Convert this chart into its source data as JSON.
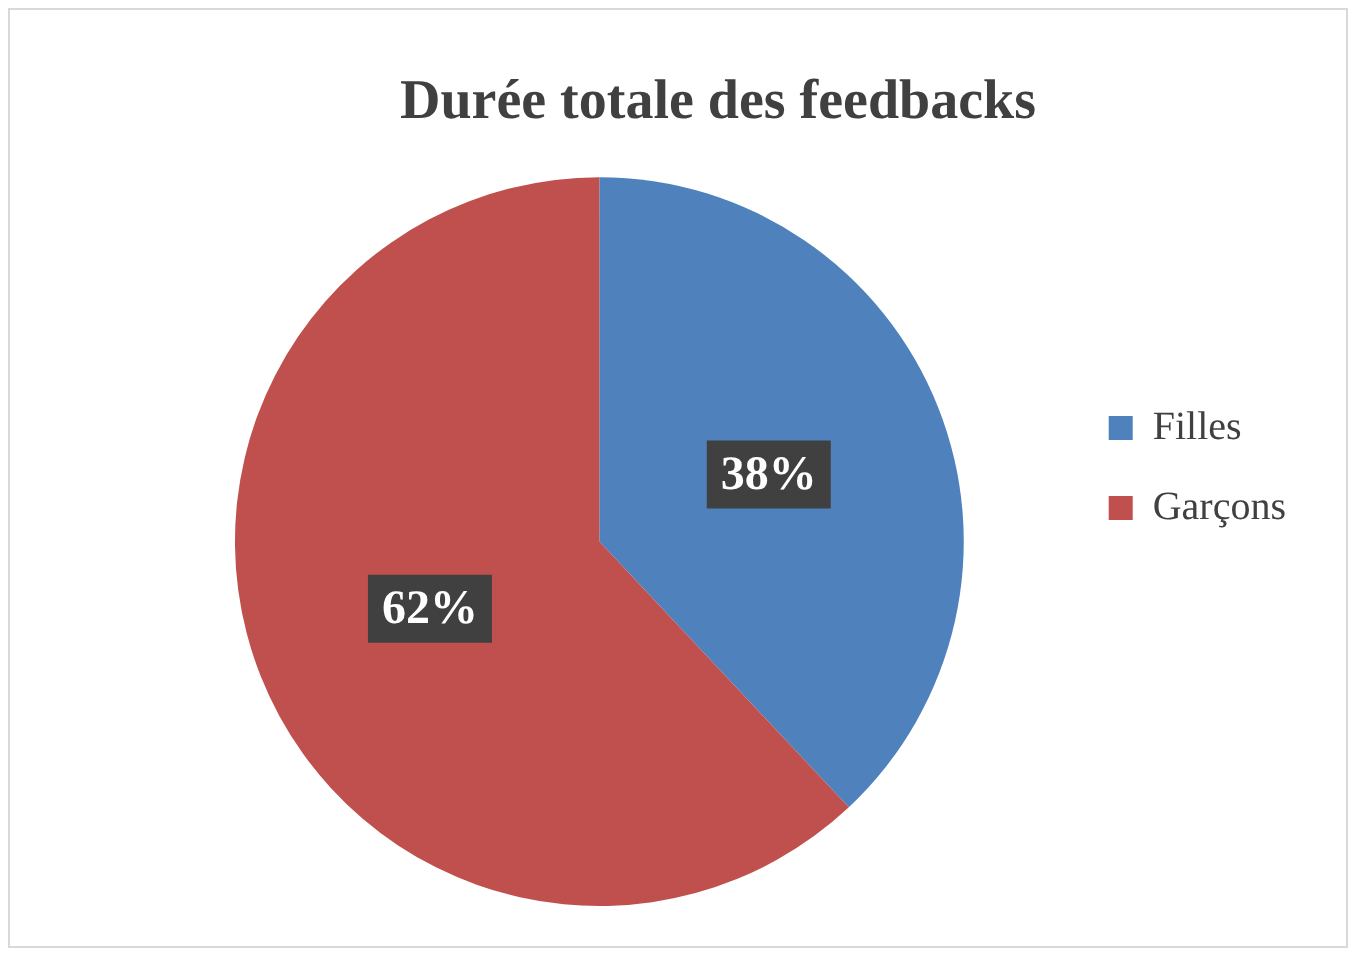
{
  "chart_data": {
    "type": "pie",
    "title": "Durée totale des feedbacks",
    "categories": [
      "Filles",
      "Garçons"
    ],
    "values": [
      38,
      62
    ],
    "colors": [
      "#4f81bd",
      "#c0504d"
    ],
    "value_labels": [
      "38%",
      "62%"
    ],
    "legend": "right"
  }
}
